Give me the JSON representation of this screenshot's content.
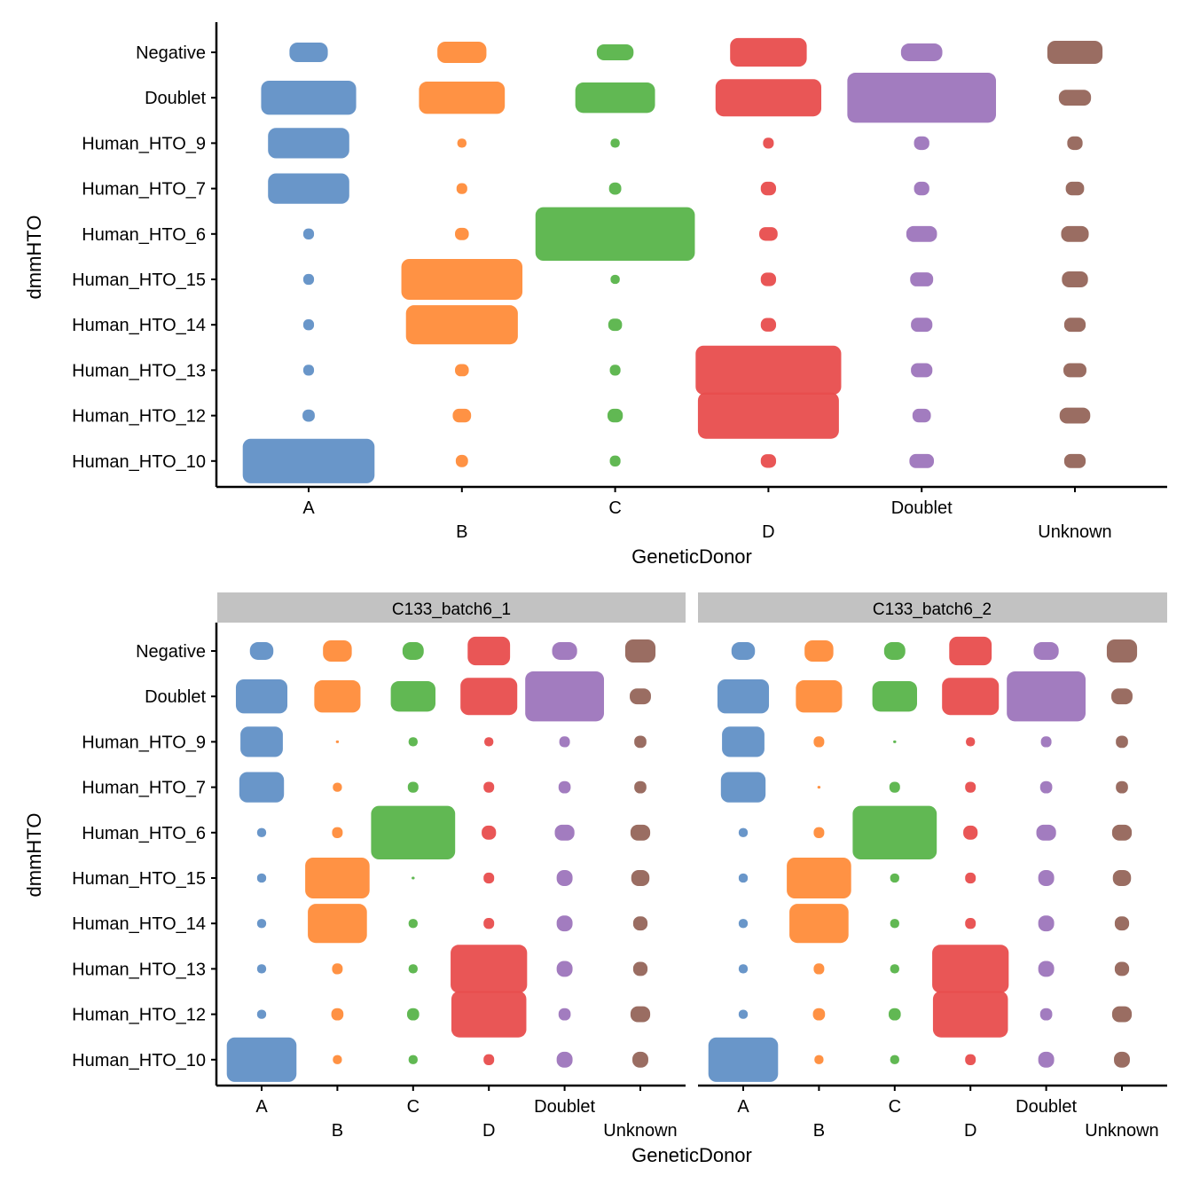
{
  "chart_data": [
    {
      "type": "scatter",
      "subtype": "jitter",
      "xlabel": "GeneticDonor",
      "ylabel": "dmmHTO",
      "categories": [
        "A",
        "B",
        "C",
        "D",
        "Doublet",
        "Unknown"
      ],
      "rows": [
        "Negative",
        "Doublet",
        "Human_HTO_9",
        "Human_HTO_7",
        "Human_HTO_6",
        "Human_HTO_15",
        "Human_HTO_14",
        "Human_HTO_13",
        "Human_HTO_12",
        "Human_HTO_10"
      ],
      "colors": {
        "A": "#6190C6",
        "B": "#FF8C3A",
        "C": "#58B44A",
        "D": "#E84D4D",
        "Doublet": "#9D75BC",
        "Unknown": "#95655A"
      },
      "grid": false,
      "legend": "none",
      "extents": {
        "A": [
          [
            0.25,
            0.43
          ],
          [
            0.62,
            0.75
          ],
          [
            0.53,
            0.67
          ],
          [
            0.53,
            0.67
          ],
          [
            0.07,
            0.24
          ],
          [
            0.07,
            0.24
          ],
          [
            0.07,
            0.24
          ],
          [
            0.07,
            0.24
          ],
          [
            0.08,
            0.27
          ],
          [
            0.86,
            0.98
          ]
        ],
        "B": [
          [
            0.32,
            0.47
          ],
          [
            0.56,
            0.71
          ],
          [
            0.06,
            0.2
          ],
          [
            0.07,
            0.24
          ],
          [
            0.09,
            0.27
          ],
          [
            0.79,
            0.9
          ],
          [
            0.73,
            0.86
          ],
          [
            0.09,
            0.27
          ],
          [
            0.12,
            0.3
          ],
          [
            0.08,
            0.27
          ]
        ],
        "C": [
          [
            0.24,
            0.35
          ],
          [
            0.52,
            0.67
          ],
          [
            0.06,
            0.2
          ],
          [
            0.08,
            0.27
          ],
          [
            1.04,
            1.18
          ],
          [
            0.06,
            0.2
          ],
          [
            0.09,
            0.27
          ],
          [
            0.07,
            0.24
          ],
          [
            0.1,
            0.3
          ],
          [
            0.07,
            0.24
          ]
        ],
        "D": [
          [
            0.5,
            0.63
          ],
          [
            0.69,
            0.82
          ],
          [
            0.07,
            0.24
          ],
          [
            0.1,
            0.3
          ],
          [
            0.12,
            0.3
          ],
          [
            0.1,
            0.3
          ],
          [
            0.1,
            0.3
          ],
          [
            0.95,
            1.08
          ],
          [
            0.92,
            1.02
          ],
          [
            0.1,
            0.3
          ]
        ],
        "Doublet": [
          [
            0.27,
            0.39
          ],
          [
            0.97,
            1.1
          ],
          [
            0.1,
            0.3
          ],
          [
            0.1,
            0.3
          ],
          [
            0.2,
            0.35
          ],
          [
            0.15,
            0.31
          ],
          [
            0.14,
            0.31
          ],
          [
            0.14,
            0.31
          ],
          [
            0.12,
            0.3
          ],
          [
            0.16,
            0.31
          ]
        ],
        "Unknown": [
          [
            0.36,
            0.51
          ],
          [
            0.21,
            0.35
          ],
          [
            0.1,
            0.3
          ],
          [
            0.12,
            0.3
          ],
          [
            0.18,
            0.35
          ],
          [
            0.17,
            0.35
          ],
          [
            0.14,
            0.31
          ],
          [
            0.15,
            0.31
          ],
          [
            0.2,
            0.35
          ],
          [
            0.14,
            0.31
          ]
        ]
      }
    },
    {
      "type": "scatter",
      "subtype": "jitter-faceted",
      "xlabel": "GeneticDonor",
      "ylabel": "dmmHTO",
      "categories": [
        "A",
        "B",
        "C",
        "D",
        "Doublet",
        "Unknown"
      ],
      "rows": [
        "Negative",
        "Doublet",
        "Human_HTO_9",
        "Human_HTO_7",
        "Human_HTO_6",
        "Human_HTO_15",
        "Human_HTO_14",
        "Human_HTO_13",
        "Human_HTO_12",
        "Human_HTO_10"
      ],
      "facets": [
        {
          "title": "C133_batch6_1",
          "extents": {
            "A": [
              [
                0.31,
                0.39
              ],
              [
                0.68,
                0.75
              ],
              [
                0.56,
                0.67
              ],
              [
                0.59,
                0.67
              ],
              [
                0.12,
                0.2
              ],
              [
                0.12,
                0.2
              ],
              [
                0.12,
                0.2
              ],
              [
                0.12,
                0.2
              ],
              [
                0.12,
                0.2
              ],
              [
                0.92,
                0.98
              ]
            ],
            "B": [
              [
                0.38,
                0.47
              ],
              [
                0.61,
                0.71
              ],
              [
                0.04,
                0.06
              ],
              [
                0.12,
                0.2
              ],
              [
                0.14,
                0.24
              ],
              [
                0.85,
                0.9
              ],
              [
                0.78,
                0.86
              ],
              [
                0.14,
                0.24
              ],
              [
                0.16,
                0.27
              ],
              [
                0.12,
                0.2
              ]
            ],
            "C": [
              [
                0.28,
                0.39
              ],
              [
                0.59,
                0.67
              ],
              [
                0.12,
                0.2
              ],
              [
                0.14,
                0.24
              ],
              [
                1.11,
                1.18
              ],
              [
                0.04,
                0.06
              ],
              [
                0.12,
                0.2
              ],
              [
                0.12,
                0.2
              ],
              [
                0.16,
                0.27
              ],
              [
                0.12,
                0.2
              ]
            ],
            "D": [
              [
                0.56,
                0.63
              ],
              [
                0.75,
                0.82
              ],
              [
                0.12,
                0.2
              ],
              [
                0.14,
                0.24
              ],
              [
                0.19,
                0.31
              ],
              [
                0.14,
                0.24
              ],
              [
                0.14,
                0.24
              ],
              [
                1.01,
                1.06
              ],
              [
                0.99,
                1.02
              ],
              [
                0.14,
                0.24
              ]
            ],
            "Doublet": [
              [
                0.33,
                0.39
              ],
              [
                1.04,
                1.1
              ],
              [
                0.14,
                0.24
              ],
              [
                0.16,
                0.27
              ],
              [
                0.26,
                0.35
              ],
              [
                0.21,
                0.35
              ],
              [
                0.21,
                0.35
              ],
              [
                0.21,
                0.35
              ],
              [
                0.16,
                0.27
              ],
              [
                0.21,
                0.35
              ]
            ],
            "Unknown": [
              [
                0.4,
                0.51
              ],
              [
                0.28,
                0.35
              ],
              [
                0.16,
                0.27
              ],
              [
                0.16,
                0.27
              ],
              [
                0.26,
                0.35
              ],
              [
                0.24,
                0.35
              ],
              [
                0.19,
                0.31
              ],
              [
                0.19,
                0.31
              ],
              [
                0.26,
                0.35
              ],
              [
                0.21,
                0.35
              ]
            ]
          }
        },
        {
          "title": "C133_batch6_2",
          "extents": {
            "A": [
              [
                0.31,
                0.39
              ],
              [
                0.68,
                0.75
              ],
              [
                0.56,
                0.67
              ],
              [
                0.59,
                0.67
              ],
              [
                0.12,
                0.2
              ],
              [
                0.12,
                0.2
              ],
              [
                0.12,
                0.2
              ],
              [
                0.12,
                0.2
              ],
              [
                0.12,
                0.2
              ],
              [
                0.92,
                0.98
              ]
            ],
            "B": [
              [
                0.38,
                0.47
              ],
              [
                0.61,
                0.71
              ],
              [
                0.14,
                0.24
              ],
              [
                0.04,
                0.06
              ],
              [
                0.14,
                0.24
              ],
              [
                0.85,
                0.9
              ],
              [
                0.78,
                0.86
              ],
              [
                0.14,
                0.24
              ],
              [
                0.16,
                0.27
              ],
              [
                0.12,
                0.2
              ]
            ],
            "C": [
              [
                0.28,
                0.39
              ],
              [
                0.59,
                0.67
              ],
              [
                0.04,
                0.06
              ],
              [
                0.14,
                0.24
              ],
              [
                1.11,
                1.18
              ],
              [
                0.12,
                0.2
              ],
              [
                0.12,
                0.2
              ],
              [
                0.12,
                0.2
              ],
              [
                0.16,
                0.27
              ],
              [
                0.12,
                0.2
              ]
            ],
            "D": [
              [
                0.56,
                0.63
              ],
              [
                0.75,
                0.82
              ],
              [
                0.12,
                0.2
              ],
              [
                0.14,
                0.24
              ],
              [
                0.19,
                0.31
              ],
              [
                0.14,
                0.24
              ],
              [
                0.14,
                0.24
              ],
              [
                1.01,
                1.06
              ],
              [
                0.99,
                1.02
              ],
              [
                0.14,
                0.24
              ]
            ],
            "Doublet": [
              [
                0.33,
                0.39
              ],
              [
                1.04,
                1.1
              ],
              [
                0.14,
                0.24
              ],
              [
                0.16,
                0.27
              ],
              [
                0.26,
                0.35
              ],
              [
                0.21,
                0.35
              ],
              [
                0.21,
                0.35
              ],
              [
                0.21,
                0.35
              ],
              [
                0.16,
                0.27
              ],
              [
                0.21,
                0.35
              ]
            ],
            "Unknown": [
              [
                0.4,
                0.51
              ],
              [
                0.28,
                0.35
              ],
              [
                0.16,
                0.27
              ],
              [
                0.16,
                0.27
              ],
              [
                0.26,
                0.35
              ],
              [
                0.24,
                0.35
              ],
              [
                0.19,
                0.31
              ],
              [
                0.19,
                0.31
              ],
              [
                0.26,
                0.35
              ],
              [
                0.21,
                0.35
              ]
            ]
          }
        }
      ]
    }
  ]
}
